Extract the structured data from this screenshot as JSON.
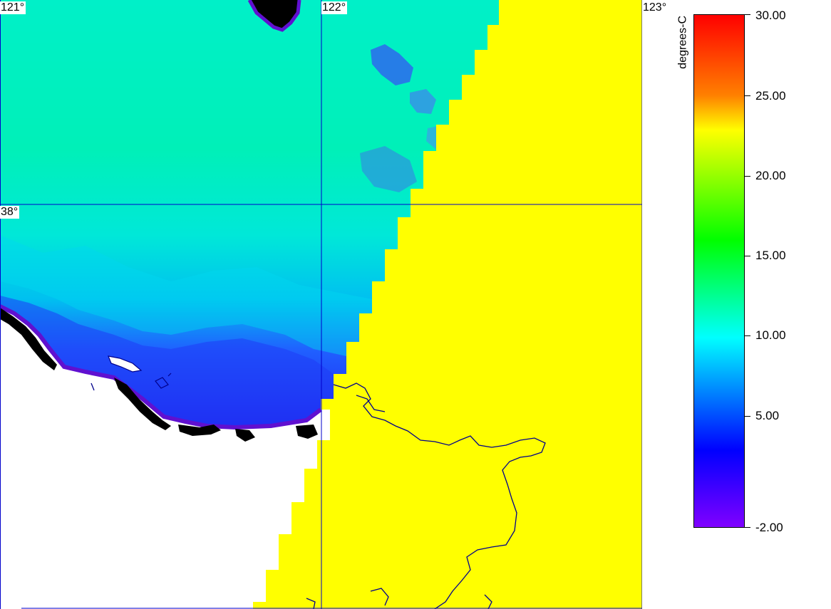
{
  "map": {
    "longitude_labels": [
      "121°",
      "122°",
      "123°"
    ],
    "latitude_labels": [
      "38°"
    ],
    "colors": {
      "land_mask": "#ffff00",
      "grid_lines": "#0000cc",
      "coastline": "#00008b",
      "nodata": "#ffffff",
      "ice_land": "#000000"
    }
  },
  "colorbar": {
    "units": "degrees-C",
    "tick_labels": [
      "30.00",
      "25.00",
      "20.00",
      "15.00",
      "10.00",
      "5.00",
      "-2.00"
    ],
    "colors": [
      "#ff0000",
      "#ff8000",
      "#ffff00",
      "#00ff00",
      "#00ffff",
      "#0000ff",
      "#8000ff"
    ]
  }
}
